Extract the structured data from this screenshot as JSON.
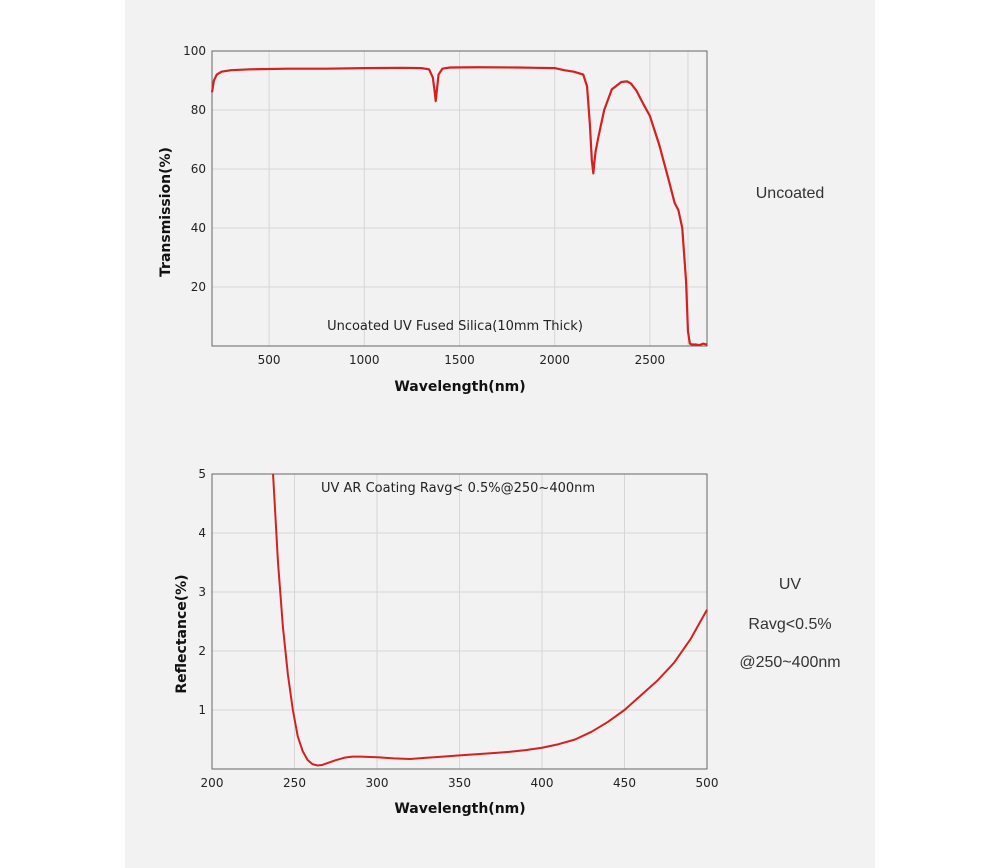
{
  "side_notes": {
    "top": "Uncoated",
    "bottom": [
      "UV",
      "Ravg<0.5%",
      "@250~400nm"
    ]
  },
  "chart_data": [
    {
      "type": "line",
      "title": "",
      "annotation": "Uncoated UV Fused Silica(10mm Thick)",
      "xlabel": "Wavelength(nm)",
      "ylabel": "Transmission(%)",
      "xlim": [
        200,
        2800
      ],
      "ylim": [
        0,
        100
      ],
      "xticks": [
        500,
        1000,
        1500,
        2000,
        2500
      ],
      "yticks": [
        20,
        40,
        60,
        80,
        100
      ],
      "grid": true,
      "color": "#d42020",
      "series": [
        {
          "x": [
            200,
            210,
            225,
            250,
            300,
            400,
            600,
            800,
            1000,
            1200,
            1300,
            1340,
            1360,
            1370,
            1375,
            1380,
            1390,
            1410,
            1450,
            1600,
            1800,
            1900,
            2000,
            2050,
            2100,
            2150,
            2170,
            2185,
            2195,
            2203,
            2208,
            2215,
            2230,
            2260,
            2300,
            2350,
            2380,
            2400,
            2430,
            2470,
            2500,
            2550,
            2600,
            2630,
            2650,
            2670,
            2690,
            2700,
            2710,
            2720,
            2740,
            2760,
            2780,
            2800
          ],
          "y": [
            86,
            90,
            92,
            93,
            93.5,
            93.8,
            94,
            94,
            94.2,
            94.3,
            94.2,
            93.8,
            91,
            86,
            83,
            86,
            92,
            94,
            94.4,
            94.5,
            94.4,
            94.3,
            94.2,
            93.5,
            93,
            92,
            88,
            75,
            63,
            58.5,
            62,
            66,
            71,
            80,
            87,
            89.5,
            89.7,
            89,
            86.5,
            81.5,
            78,
            68,
            56,
            48.5,
            46,
            40,
            22,
            5,
            0.8,
            0.5,
            0.5,
            0.3,
            0.8,
            0.5
          ]
        }
      ]
    },
    {
      "type": "line",
      "title": "",
      "annotation": "UV AR Coating Ravg< 0.5%@250~400nm",
      "xlabel": "Wavelength(nm)",
      "ylabel": "Reflectance(%)",
      "xlim": [
        200,
        500
      ],
      "ylim": [
        0,
        5
      ],
      "xticks": [
        200,
        250,
        300,
        350,
        400,
        450,
        500
      ],
      "yticks": [
        1,
        2,
        3,
        4,
        5
      ],
      "grid": true,
      "color": "#d42020",
      "series": [
        {
          "x": [
            237,
            240,
            243,
            246,
            249,
            252,
            255,
            258,
            261,
            264,
            267,
            270,
            275,
            280,
            285,
            290,
            300,
            310,
            320,
            330,
            340,
            350,
            360,
            370,
            380,
            390,
            400,
            410,
            420,
            430,
            440,
            450,
            460,
            470,
            480,
            490,
            500
          ],
          "y": [
            5.0,
            3.5,
            2.4,
            1.6,
            1.0,
            0.55,
            0.3,
            0.15,
            0.08,
            0.06,
            0.07,
            0.1,
            0.15,
            0.19,
            0.21,
            0.21,
            0.2,
            0.18,
            0.17,
            0.19,
            0.21,
            0.23,
            0.25,
            0.27,
            0.29,
            0.32,
            0.36,
            0.42,
            0.5,
            0.63,
            0.8,
            1.0,
            1.25,
            1.5,
            1.8,
            2.2,
            2.7
          ]
        }
      ]
    }
  ]
}
